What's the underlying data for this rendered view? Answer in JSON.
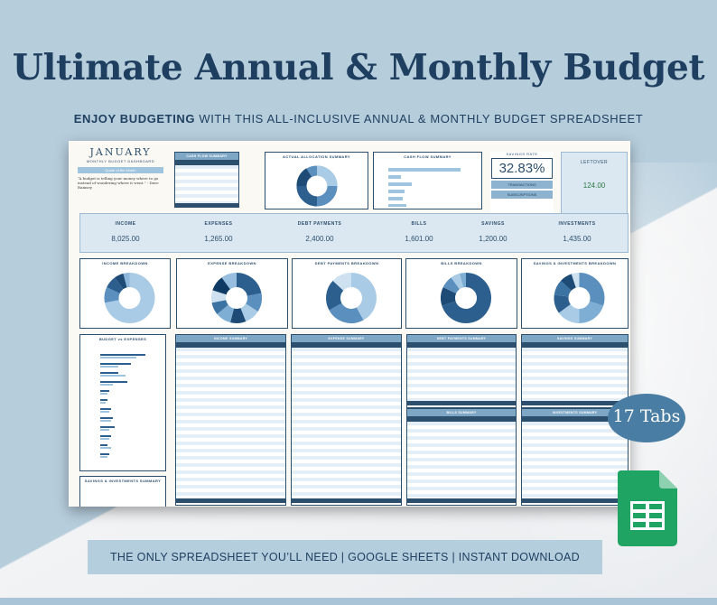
{
  "headline": "Ultimate Annual & Monthly Budget",
  "subline_bold": "ENJOY BUDGETING",
  "subline_rest": " WITH THIS ALL-INCLUSIVE ANNUAL & MONTHLY BUDGET SPREADSHEET",
  "dashboard": {
    "month": "JANUARY",
    "subtitle": "MONTHLY BUDGET DASHBOARD",
    "quote_label": "Quote of the Month",
    "quote": "“A budget is telling your money where to go instead of wondering where it went.” - Dave Ramsey",
    "cash_flow_title": "CASH FLOW SUMMARY",
    "allocation_title": "ACTUAL ALLOCATION SUMMARY",
    "cash_flow_chart_title": "CASH FLOW SUMMARY",
    "savings_rate_label": "SAVINGS RATE",
    "savings_rate": "32.83%",
    "transactions": "TRANSACTIONS",
    "subscriptions": "SUBSCRIPTIONS",
    "leftover_label": "LEFTOVER",
    "leftover_value": "124.00"
  },
  "stats": [
    {
      "label": "INCOME",
      "value": "8,025.00"
    },
    {
      "label": "EXPENSES",
      "value": "1,265.00"
    },
    {
      "label": "DEBT PAYMENTS",
      "value": "2,400.00"
    },
    {
      "label": "BILLS",
      "value": "1,601.00"
    },
    {
      "label": "SAVINGS",
      "value": "1,200.00"
    },
    {
      "label": "INVESTMENTS",
      "value": "1,435.00"
    }
  ],
  "breakdowns": [
    {
      "title": "INCOME BREAKDOWN",
      "slices": [
        0.72,
        0.1,
        0.08,
        0.06,
        0.04
      ],
      "colors": [
        "#a9cbe6",
        "#5b8fbd",
        "#2d5f8e",
        "#1d4b75",
        "#8db7da"
      ]
    },
    {
      "title": "EXPENSE BREAKDOWN",
      "slices": [
        0.22,
        0.12,
        0.1,
        0.1,
        0.1,
        0.08,
        0.08,
        0.1,
        0.1
      ],
      "colors": [
        "#2d5f8e",
        "#5b8fbd",
        "#a9cbe6",
        "#1d4b75",
        "#7eaed4",
        "#3b73a3",
        "#cde1f0",
        "#0f3a63",
        "#97bedf"
      ]
    },
    {
      "title": "DEBT PAYMENTS BREAKDOWN",
      "slices": [
        0.42,
        0.25,
        0.2,
        0.13
      ],
      "colors": [
        "#a9cbe6",
        "#5b8fbd",
        "#2d5f8e",
        "#cde1f0"
      ]
    },
    {
      "title": "BILLS BREAKDOWN",
      "slices": [
        0.7,
        0.12,
        0.08,
        0.06,
        0.04
      ],
      "colors": [
        "#2d5f8e",
        "#1d4b75",
        "#5b8fbd",
        "#a9cbe6",
        "#7eaed4"
      ]
    },
    {
      "title": "SAVINGS & INVESTMENTS BREAKDOWN",
      "slices": [
        0.3,
        0.2,
        0.15,
        0.12,
        0.1,
        0.08,
        0.05
      ],
      "colors": [
        "#5b8fbd",
        "#7eaed4",
        "#a9cbe6",
        "#2d5f8e",
        "#3b73a3",
        "#1d4b75",
        "#cde1f0"
      ]
    }
  ],
  "tables": {
    "budget_vs_expenses": "BUDGET vs EXPENSES",
    "savings_investments_summary": "SAVINGS & INVESTMENTS SUMMARY",
    "income": "INCOME SUMMARY",
    "expense": "EXPENSE SUMMARY",
    "debt": "DEBT PAYMENTS SUMMARY",
    "savings": "SAVINGS SUMMARY",
    "bills": "BILLS SUMMARY",
    "investments": "INVESTMENTS SUMMARY"
  },
  "badge": "17 Tabs",
  "footer": "THE ONLY SPREADSHEET YOU’LL NEED | GOOGLE SHEETS | INSTANT DOWNLOAD",
  "icon": "google-sheets-icon"
}
